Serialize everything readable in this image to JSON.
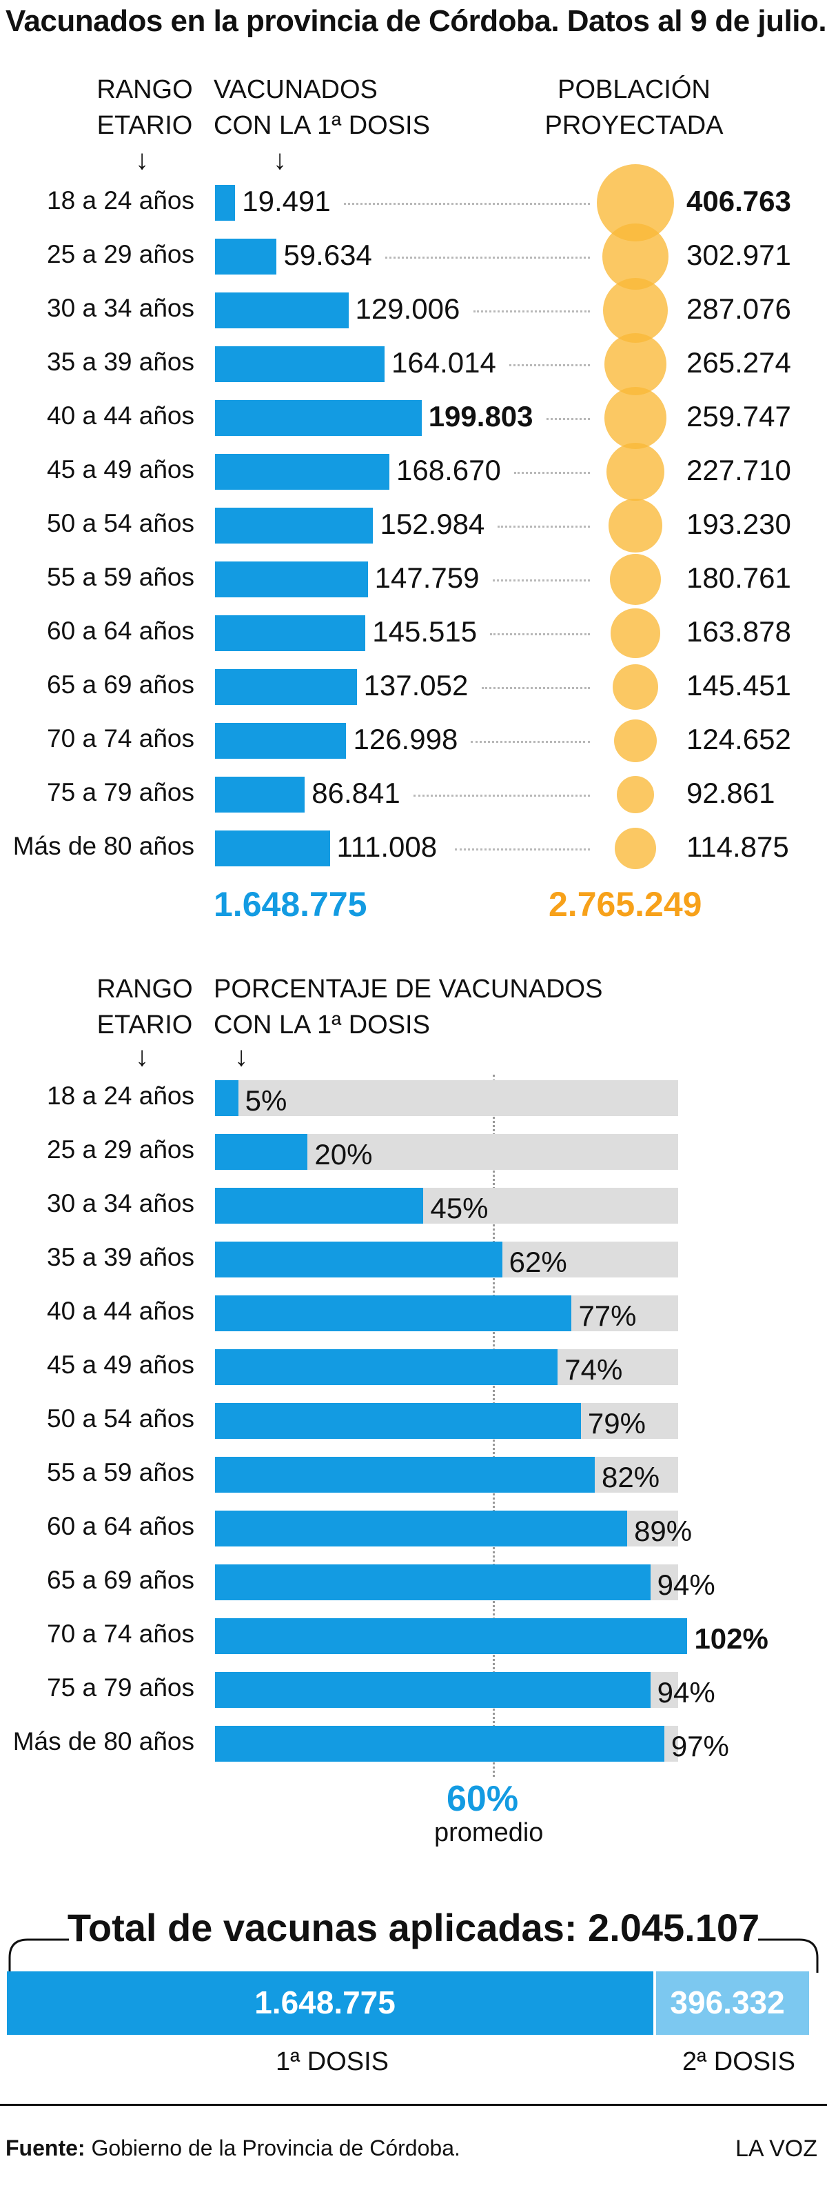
{
  "title": "Vacunados en la provincia de Córdoba. Datos al 9 de julio.",
  "top": {
    "header_range": [
      "RANGO",
      "ETARIO"
    ],
    "header_vaccinated": [
      "VACUNADOS",
      "CON LA 1ª DOSIS"
    ],
    "header_population": [
      "POBLACIÓN",
      "PROYECTADA"
    ],
    "total_vaccinated": "1.648.775",
    "total_population": "2.765.249"
  },
  "middle": {
    "header_range": [
      "RANGO",
      "ETARIO"
    ],
    "header_percent": [
      "PORCENTAJE DE VACUNADOS",
      "CON LA 1ª DOSIS"
    ],
    "average_value": "60%",
    "average_label": "promedio"
  },
  "bottom": {
    "title": "Total de vacunas aplicadas: 2.045.107",
    "dose1_value": "1.648.775",
    "dose2_value": "396.332",
    "dose1_label": "1ª DOSIS",
    "dose2_label": "2ª DOSIS"
  },
  "footer": {
    "source_label": "Fuente:",
    "source_text": "Gobierno de la Provincia de Córdoba.",
    "brand": "LA VOZ"
  },
  "colors": {
    "blue": "#139be2",
    "orange": "#f7a11a",
    "circle": "#fab937",
    "track": "#dddddd",
    "dose2": "#7cc8f0"
  },
  "chart_data": [
    {
      "type": "bar",
      "categories": [
        "18 a 24 años",
        "25 a 29 años",
        "30 a 34 años",
        "35 a 39 años",
        "40 a 44 años",
        "45 a 49 años",
        "50 a 54 años",
        "55 a 59 años",
        "60 a 64 años",
        "65 a 69 años",
        "70 a 74 años",
        "75 a 79  años",
        "Más de 80 años"
      ],
      "series": [
        {
          "name": "VACUNADOS CON LA 1ª DOSIS",
          "values": [
            19491,
            59634,
            129006,
            164014,
            199803,
            168670,
            152984,
            147759,
            145515,
            137052,
            126998,
            86841,
            111008
          ],
          "labels": [
            "19.491",
            "59.634",
            "129.006",
            "164.014",
            "199.803",
            "168.670",
            "152.984",
            "147.759",
            "145.515",
            "137.052",
            "126.998",
            "86.841",
            "111.008"
          ]
        },
        {
          "name": "POBLACIÓN PROYECTADA",
          "values": [
            406763,
            302971,
            287076,
            265274,
            259747,
            227710,
            193230,
            180761,
            163878,
            145451,
            124652,
            92861,
            114875
          ],
          "labels": [
            "406.763",
            "302.971",
            "287.076",
            "265.274",
            "259.747",
            "227.710",
            "193.230",
            "180.761",
            "163.878",
            "145.451",
            "124.652",
            "92.861",
            "114.875"
          ]
        }
      ]
    },
    {
      "type": "bar",
      "categories": [
        "18 a 24 años",
        "25 a 29 años",
        "30 a 34 años",
        "35 a 39 años",
        "40 a 44 años",
        "45 a 49 años",
        "50 a 54 años",
        "55 a 59 años",
        "60 a 64 años",
        "65 a 69 años",
        "70 a 74 años",
        "75 a 79  años",
        "Más de 80 años"
      ],
      "series": [
        {
          "name": "PORCENTAJE DE VACUNADOS CON LA 1ª DOSIS",
          "values": [
            5,
            20,
            45,
            62,
            77,
            74,
            79,
            82,
            89,
            94,
            102,
            94,
            97
          ],
          "labels": [
            "5%",
            "20%",
            "45%",
            "62%",
            "77%",
            "74%",
            "79%",
            "82%",
            "89%",
            "94%",
            "102%",
            "94%",
            "97%"
          ]
        }
      ],
      "average": 60
    },
    {
      "type": "bar",
      "categories": [
        "1ª DOSIS",
        "2ª DOSIS"
      ],
      "values": [
        1648775,
        396332
      ],
      "title": "Total de vacunas aplicadas: 2.045.107"
    }
  ]
}
